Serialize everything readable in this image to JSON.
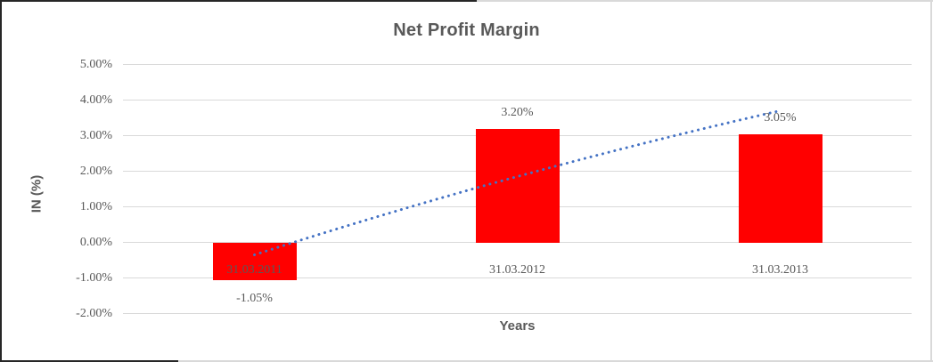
{
  "frame": {
    "border_dark_color": "#262626",
    "border_light_color": "#D9D9D9",
    "background": "#FFFFFF"
  },
  "chart": {
    "title": "Net Profit Margin",
    "x_axis_title": "Years",
    "y_axis_title": "IN (%)",
    "title_color": "#595959",
    "text_color": "#595959"
  },
  "chart_data": {
    "type": "bar",
    "title": "Net Profit Margin",
    "xlabel": "Years",
    "ylabel": "IN (%)",
    "categories": [
      "31.03.2011",
      "31.03.2012",
      "31.03.2013"
    ],
    "values": [
      -1.05,
      3.2,
      3.05
    ],
    "data_labels": [
      "-1.05%",
      "3.20%",
      "3.05%"
    ],
    "unit": "%",
    "ylim": [
      -2,
      5
    ],
    "ytick_step": 1,
    "yticks": [
      {
        "value": 5,
        "label": "5.00%"
      },
      {
        "value": 4,
        "label": "4.00%"
      },
      {
        "value": 3,
        "label": "3.00%"
      },
      {
        "value": 2,
        "label": "2.00%"
      },
      {
        "value": 1,
        "label": "1.00%"
      },
      {
        "value": 0,
        "label": "0.00%"
      },
      {
        "value": -1,
        "label": "-1.00%"
      },
      {
        "value": -2,
        "label": "-2.00%"
      }
    ],
    "grid": true,
    "legend": false,
    "bar_color": "#FF0000",
    "gridline_color": "#D9D9D9",
    "trendline": {
      "style": "dotted",
      "color": "#4472C4",
      "values_at_categories": [
        -0.35,
        1.85,
        3.7
      ]
    }
  }
}
